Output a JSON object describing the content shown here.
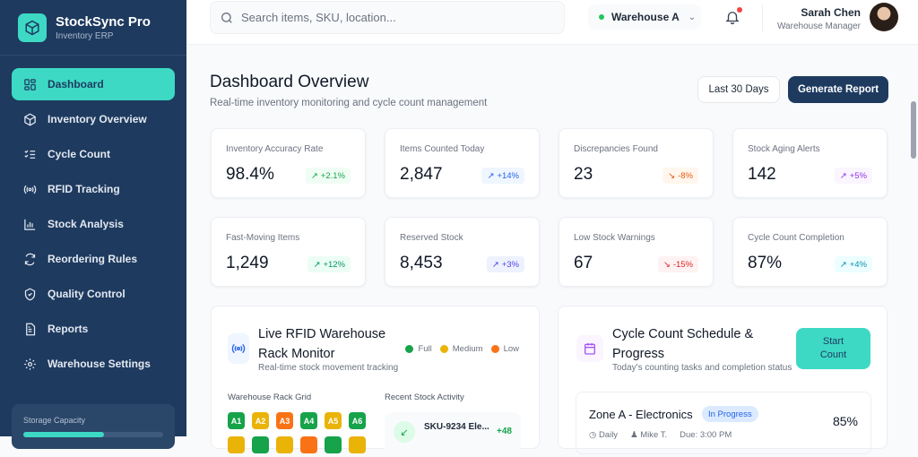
{
  "brand": {
    "title": "StockSync Pro",
    "subtitle": "Inventory ERP"
  },
  "sidebar": {
    "items": [
      {
        "label": "Dashboard",
        "icon": "dashboard-icon",
        "active": true
      },
      {
        "label": "Inventory Overview",
        "icon": "box-icon"
      },
      {
        "label": "Cycle Count",
        "icon": "checklist-icon"
      },
      {
        "label": "RFID Tracking",
        "icon": "rfid-icon"
      },
      {
        "label": "Stock Analysis",
        "icon": "bar-chart-icon"
      },
      {
        "label": "Reordering Rules",
        "icon": "refresh-icon"
      },
      {
        "label": "Quality Control",
        "icon": "shield-check-icon"
      },
      {
        "label": "Reports",
        "icon": "document-icon"
      },
      {
        "label": "Warehouse Settings",
        "icon": "gear-icon"
      }
    ],
    "storage": {
      "label": "Storage Capacity",
      "fill_percent": 58
    }
  },
  "header": {
    "search_placeholder": "Search items, SKU, location...",
    "warehouse": "Warehouse A",
    "user": {
      "name": "Sarah Chen",
      "role": "Warehouse Manager"
    }
  },
  "page": {
    "title": "Dashboard Overview",
    "subtitle": "Real-time inventory monitoring and cycle count management",
    "range_button": "Last 30 Days",
    "report_button": "Generate Report"
  },
  "stats": [
    {
      "label": "Inventory Accuracy Rate",
      "value": "98.4%",
      "change": "+2.1%",
      "trend": "up",
      "color": "#16a34a",
      "bg": "#f0fdf4"
    },
    {
      "label": "Items Counted Today",
      "value": "2,847",
      "change": "+14%",
      "trend": "up",
      "color": "#2563eb",
      "bg": "#eff6ff"
    },
    {
      "label": "Discrepancies Found",
      "value": "23",
      "change": "-8%",
      "trend": "down",
      "color": "#ea580c",
      "bg": "#fff7ed"
    },
    {
      "label": "Stock Aging Alerts",
      "value": "142",
      "change": "+5%",
      "trend": "up",
      "color": "#9333ea",
      "bg": "#faf5ff"
    },
    {
      "label": "Fast-Moving Items",
      "value": "1,249",
      "change": "+12%",
      "trend": "up",
      "color": "#059669",
      "bg": "#ecfdf5"
    },
    {
      "label": "Reserved Stock",
      "value": "8,453",
      "change": "+3%",
      "trend": "up",
      "color": "#4f46e5",
      "bg": "#eef2ff"
    },
    {
      "label": "Low Stock Warnings",
      "value": "67",
      "change": "-15%",
      "trend": "down",
      "color": "#dc2626",
      "bg": "#fef2f2"
    },
    {
      "label": "Cycle Count Completion",
      "value": "87%",
      "change": "+4%",
      "trend": "up",
      "color": "#0891b2",
      "bg": "#ecfeff"
    }
  ],
  "rfid": {
    "title_line1": "Live RFID Warehouse",
    "title_line2": "Rack Monitor",
    "subtitle": "Real-time stock movement tracking",
    "legend": [
      {
        "label": "Full",
        "color": "#16a34a"
      },
      {
        "label": "Medium",
        "color": "#eab308"
      },
      {
        "label": "Low",
        "color": "#f97316"
      }
    ],
    "grid_label": "Warehouse Rack Grid",
    "activity_label": "Recent Stock Activity",
    "racks": [
      {
        "id": "A1",
        "level": "Full"
      },
      {
        "id": "A2",
        "level": "Medium"
      },
      {
        "id": "A3",
        "level": "Low"
      },
      {
        "id": "A4",
        "level": "Full"
      },
      {
        "id": "A5",
        "level": "Medium"
      },
      {
        "id": "A6",
        "level": "Full"
      },
      {
        "id": "",
        "level": "Medium"
      },
      {
        "id": "",
        "level": "Full"
      },
      {
        "id": "",
        "level": "Medium"
      },
      {
        "id": "",
        "level": "Low"
      },
      {
        "id": "",
        "level": "Full"
      },
      {
        "id": "",
        "level": "Medium"
      }
    ],
    "activity": [
      {
        "sku": "SKU-9234 Ele...",
        "qty": "+48"
      }
    ]
  },
  "cycle": {
    "title_line1": "Cycle Count Schedule &",
    "title_line2": "Progress",
    "subtitle": "Today's counting tasks and completion status",
    "start_line1": "Start",
    "start_line2": "Count",
    "zones": [
      {
        "name": "Zone A - Electronics",
        "status": "In Progress",
        "percent": "85%",
        "frequency": "Daily",
        "assignee": "Mike T.",
        "due": "Due: 3:00 PM"
      }
    ]
  }
}
